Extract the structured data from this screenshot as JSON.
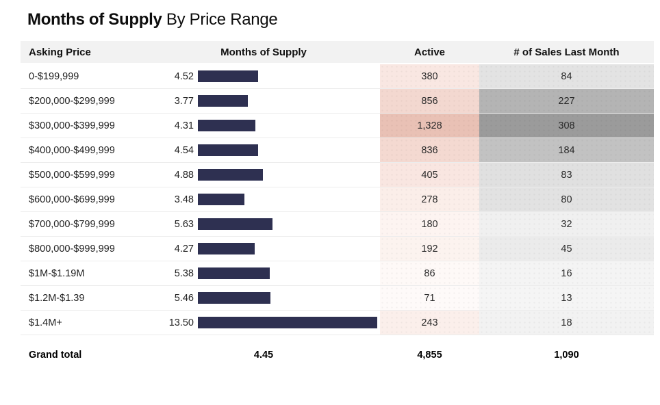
{
  "title": {
    "main": "Months of Supply",
    "sub": "By Price Range"
  },
  "colors": {
    "bar": "#2e3051",
    "header_bg": "#f2f2f2",
    "active_heat_max": "#e9c1b5",
    "sales_heat_max": "#9b9b9b"
  },
  "table": {
    "headers": [
      "Asking Price",
      "Months of Supply",
      "Active",
      "# of Sales Last Month"
    ],
    "rows": [
      {
        "price": "0-$199,999",
        "months": "4.52",
        "active": "380",
        "sales": "84",
        "active_bg": "#f9e7e2",
        "sales_bg": "#e3e3e3"
      },
      {
        "price": "$200,000-$299,999",
        "months": "3.77",
        "active": "856",
        "sales": "227",
        "active_bg": "#f3d8d0",
        "sales_bg": "#b4b4b4"
      },
      {
        "price": "$300,000-$399,999",
        "months": "4.31",
        "active": "1,328",
        "sales": "308",
        "active_bg": "#e9c1b5",
        "sales_bg": "#9b9b9b"
      },
      {
        "price": "$400,000-$499,999",
        "months": "4.54",
        "active": "836",
        "sales": "184",
        "active_bg": "#f4d9d1",
        "sales_bg": "#c2c2c2"
      },
      {
        "price": "$500,000-$599,999",
        "months": "4.88",
        "active": "405",
        "sales": "83",
        "active_bg": "#f9e6e1",
        "sales_bg": "#e0e0e0"
      },
      {
        "price": "$600,000-$699,999",
        "months": "3.48",
        "active": "278",
        "sales": "80",
        "active_bg": "#fbeee9",
        "sales_bg": "#e2e2e2"
      },
      {
        "price": "$700,000-$799,999",
        "months": "5.63",
        "active": "180",
        "sales": "32",
        "active_bg": "#fdf4f1",
        "sales_bg": "#f0f0f0"
      },
      {
        "price": "$800,000-$999,999",
        "months": "4.27",
        "active": "192",
        "sales": "45",
        "active_bg": "#fcf3ef",
        "sales_bg": "#ebebeb"
      },
      {
        "price": "$1M-$1.19M",
        "months": "5.38",
        "active": "86",
        "sales": "16",
        "active_bg": "#fef9f7",
        "sales_bg": "#f4f4f4"
      },
      {
        "price": "$1.2M-$1.39",
        "months": "5.46",
        "active": "71",
        "sales": "13",
        "active_bg": "#fefaf9",
        "sales_bg": "#f5f5f5"
      },
      {
        "price": "$1.4M+",
        "months": "13.50",
        "active": "243",
        "sales": "18",
        "active_bg": "#fbefeb",
        "sales_bg": "#f2f2f2"
      }
    ],
    "grand_total": {
      "label": "Grand total",
      "months": "4.45",
      "active": "4,855",
      "sales": "1,090"
    }
  },
  "chart_data": {
    "type": "bar",
    "orientation": "horizontal",
    "title": "Months of Supply By Price Range",
    "categories": [
      "0-$199,999",
      "$200,000-$299,999",
      "$300,000-$399,999",
      "$400,000-$499,999",
      "$500,000-$599,999",
      "$600,000-$699,999",
      "$700,000-$799,999",
      "$800,000-$999,999",
      "$1M-$1.19M",
      "$1.2M-$1.39",
      "$1.4M+"
    ],
    "series": [
      {
        "name": "Months of Supply",
        "values": [
          4.52,
          3.77,
          4.31,
          4.54,
          4.88,
          3.48,
          5.63,
          4.27,
          5.38,
          5.46,
          13.5
        ]
      },
      {
        "name": "Active",
        "values": [
          380,
          856,
          1328,
          836,
          405,
          278,
          180,
          192,
          86,
          71,
          243
        ]
      },
      {
        "name": "# of Sales Last Month",
        "values": [
          84,
          227,
          308,
          184,
          83,
          80,
          32,
          45,
          16,
          13,
          18
        ]
      }
    ],
    "bar_axis_max": 13.5,
    "grid": false,
    "legend_position": "none",
    "totals": {
      "months_of_supply": 4.45,
      "active": 4855,
      "sales_last_month": 1090
    }
  }
}
